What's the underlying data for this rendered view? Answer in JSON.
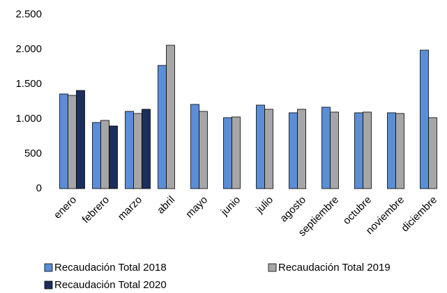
{
  "chart_data": {
    "type": "bar",
    "categories": [
      "enero",
      "febrero",
      "marzo",
      "abril",
      "mayo",
      "junio",
      "julio",
      "agosto",
      "septiembre",
      "octubre",
      "noviembre",
      "diciembre"
    ],
    "series": [
      {
        "name": "Recaudación Total 2018",
        "color": "#5b8ed6",
        "values": [
          1360,
          950,
          1110,
          1770,
          1210,
          1020,
          1200,
          1090,
          1170,
          1090,
          1090,
          1990
        ]
      },
      {
        "name": "Recaudación Total 2019",
        "color": "#a6a6a6",
        "values": [
          1340,
          980,
          1080,
          2060,
          1110,
          1030,
          1140,
          1140,
          1100,
          1100,
          1080,
          1020
        ]
      },
      {
        "name": "Recaudación Total 2020",
        "color": "#1c2f5c",
        "values": [
          1410,
          900,
          1140,
          null,
          null,
          null,
          null,
          null,
          null,
          null,
          null,
          null
        ]
      }
    ],
    "ylim": [
      0,
      2500
    ],
    "yticks": [
      0,
      500,
      {
        "value": 1000,
        "label": "1.000"
      },
      {
        "value": 1500,
        "label": "1.500"
      },
      {
        "value": 2000,
        "label": "2.000"
      },
      {
        "value": 2500,
        "label": "2.500"
      }
    ],
    "grid": false,
    "legend": "bottom"
  }
}
